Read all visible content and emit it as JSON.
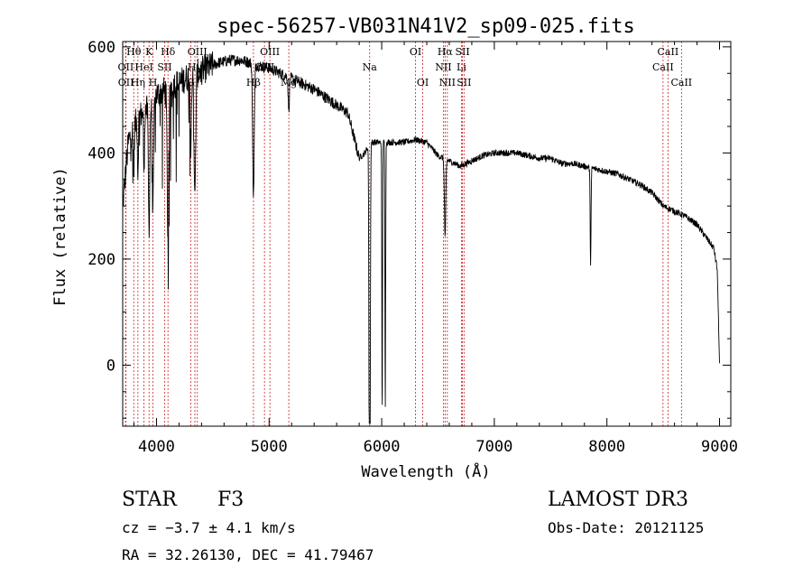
{
  "chart_data": {
    "type": "line",
    "title": "spec-56257-VB031N41V2_sp09-025.fits",
    "xlabel": "Wavelength (Å)",
    "ylabel": "Flux (relative)",
    "xlim": [
      3700,
      9100
    ],
    "ylim": [
      -115,
      610
    ],
    "xticks": [
      4000,
      5000,
      6000,
      7000,
      8000,
      9000
    ],
    "yticks": [
      0,
      200,
      400,
      600
    ],
    "continuum": [
      [
        3700,
        300
      ],
      [
        3750,
        420
      ],
      [
        3800,
        450
      ],
      [
        3850,
        470
      ],
      [
        3900,
        480
      ],
      [
        3950,
        490
      ],
      [
        4000,
        510
      ],
      [
        4050,
        515
      ],
      [
        4100,
        520
      ],
      [
        4150,
        530
      ],
      [
        4200,
        530
      ],
      [
        4250,
        540
      ],
      [
        4300,
        545
      ],
      [
        4350,
        548
      ],
      [
        4400,
        555
      ],
      [
        4450,
        560
      ],
      [
        4500,
        565
      ],
      [
        4550,
        570
      ],
      [
        4600,
        572
      ],
      [
        4650,
        575
      ],
      [
        4700,
        575
      ],
      [
        4750,
        575
      ],
      [
        4800,
        572
      ],
      [
        4900,
        565
      ],
      [
        5000,
        560
      ],
      [
        5100,
        550
      ],
      [
        5200,
        540
      ],
      [
        5300,
        530
      ],
      [
        5400,
        520
      ],
      [
        5500,
        505
      ],
      [
        5600,
        490
      ],
      [
        5700,
        475
      ],
      [
        5800,
        390
      ],
      [
        5850,
        400
      ],
      [
        5900,
        420
      ],
      [
        6000,
        420
      ],
      [
        6100,
        420
      ],
      [
        6200,
        420
      ],
      [
        6300,
        425
      ],
      [
        6400,
        420
      ],
      [
        6500,
        395
      ],
      [
        6600,
        385
      ],
      [
        6700,
        375
      ],
      [
        6800,
        385
      ],
      [
        6900,
        395
      ],
      [
        7000,
        400
      ],
      [
        7100,
        400
      ],
      [
        7200,
        400
      ],
      [
        7300,
        395
      ],
      [
        7400,
        390
      ],
      [
        7500,
        390
      ],
      [
        7600,
        380
      ],
      [
        7700,
        380
      ],
      [
        7800,
        375
      ],
      [
        7900,
        370
      ],
      [
        8000,
        365
      ],
      [
        8100,
        360
      ],
      [
        8200,
        350
      ],
      [
        8300,
        340
      ],
      [
        8400,
        325
      ],
      [
        8500,
        300
      ],
      [
        8600,
        290
      ],
      [
        8700,
        280
      ],
      [
        8800,
        265
      ],
      [
        8900,
        235
      ],
      [
        8950,
        220
      ],
      [
        8980,
        180
      ],
      [
        9000,
        0
      ]
    ],
    "absorption_lines": [
      {
        "center": 3934,
        "depth": 230,
        "width": 6
      },
      {
        "center": 3969,
        "depth": 200,
        "width": 6
      },
      {
        "center": 3889,
        "depth": 120,
        "width": 4
      },
      {
        "center": 3835,
        "depth": 100,
        "width": 4
      },
      {
        "center": 3798,
        "depth": 90,
        "width": 4
      },
      {
        "center": 4102,
        "depth": 280,
        "width": 7
      },
      {
        "center": 4341,
        "depth": 240,
        "width": 7
      },
      {
        "center": 4305,
        "depth": 120,
        "width": 5
      },
      {
        "center": 4861,
        "depth": 250,
        "width": 7
      },
      {
        "center": 5175,
        "depth": 60,
        "width": 6
      },
      {
        "center": 5890,
        "depth": 530,
        "width": 4
      },
      {
        "center": 5896,
        "depth": 480,
        "width": 4
      },
      {
        "center": 6004,
        "depth": 520,
        "width": 3
      },
      {
        "center": 6032,
        "depth": 500,
        "width": 3
      },
      {
        "center": 6563,
        "depth": 150,
        "width": 6
      },
      {
        "center": 7855,
        "depth": 180,
        "width": 4
      }
    ],
    "marked_lines": [
      {
        "label": "Hθ",
        "wavelength": 3798,
        "row": 0
      },
      {
        "label": "OII",
        "wavelength": 3727,
        "row": 1
      },
      {
        "label": "OII",
        "wavelength": 3729,
        "row": 2
      },
      {
        "label": "Hη",
        "wavelength": 3835,
        "row": 2
      },
      {
        "label": "HeI",
        "wavelength": 3889,
        "row": 1
      },
      {
        "label": "K",
        "wavelength": 3934,
        "row": 0
      },
      {
        "label": "H",
        "wavelength": 3969,
        "row": 2
      },
      {
        "label": "SII",
        "wavelength": 4072,
        "row": 1
      },
      {
        "label": "Hδ",
        "wavelength": 4102,
        "row": 0
      },
      {
        "label": "OIII",
        "wavelength": 4363,
        "row": 0
      },
      {
        "label": "Hγ",
        "wavelength": 4341,
        "row": 1
      },
      {
        "label": "G",
        "wavelength": 4305,
        "row": 2
      },
      {
        "label": "OIII",
        "wavelength": 5007,
        "row": 0
      },
      {
        "label": "OIII",
        "wavelength": 4959,
        "row": 1
      },
      {
        "label": "Hβ",
        "wavelength": 4861,
        "row": 2
      },
      {
        "label": "Mg",
        "wavelength": 5175,
        "row": 2
      },
      {
        "label": "Na",
        "wavelength": 5893,
        "row": 1
      },
      {
        "label": "OI",
        "wavelength": 6300,
        "row": 0
      },
      {
        "label": "OI",
        "wavelength": 6364,
        "row": 2
      },
      {
        "label": "Hα",
        "wavelength": 6563,
        "row": 0
      },
      {
        "label": "NII",
        "wavelength": 6548,
        "row": 1
      },
      {
        "label": "NII",
        "wavelength": 6583,
        "row": 2
      },
      {
        "label": "SII",
        "wavelength": 6717,
        "row": 0
      },
      {
        "label": "Li",
        "wavelength": 6708,
        "row": 1
      },
      {
        "label": "SII",
        "wavelength": 6731,
        "row": 2
      },
      {
        "label": "CaII",
        "wavelength": 8542,
        "row": 0
      },
      {
        "label": "CaII",
        "wavelength": 8498,
        "row": 1
      },
      {
        "label": "CaII",
        "wavelength": 8662,
        "row": 2
      }
    ]
  },
  "info": {
    "object_class": "STAR",
    "subclass": "F3",
    "survey": "LAMOST DR3",
    "cz": "cz = −3.7 ± 4.1 km/s",
    "obs_date": "Obs-Date: 20121125",
    "coords": "RA =  32.26130, DEC =  41.79467"
  },
  "colors": {
    "line": "#000000",
    "marker": "#cc2222"
  }
}
